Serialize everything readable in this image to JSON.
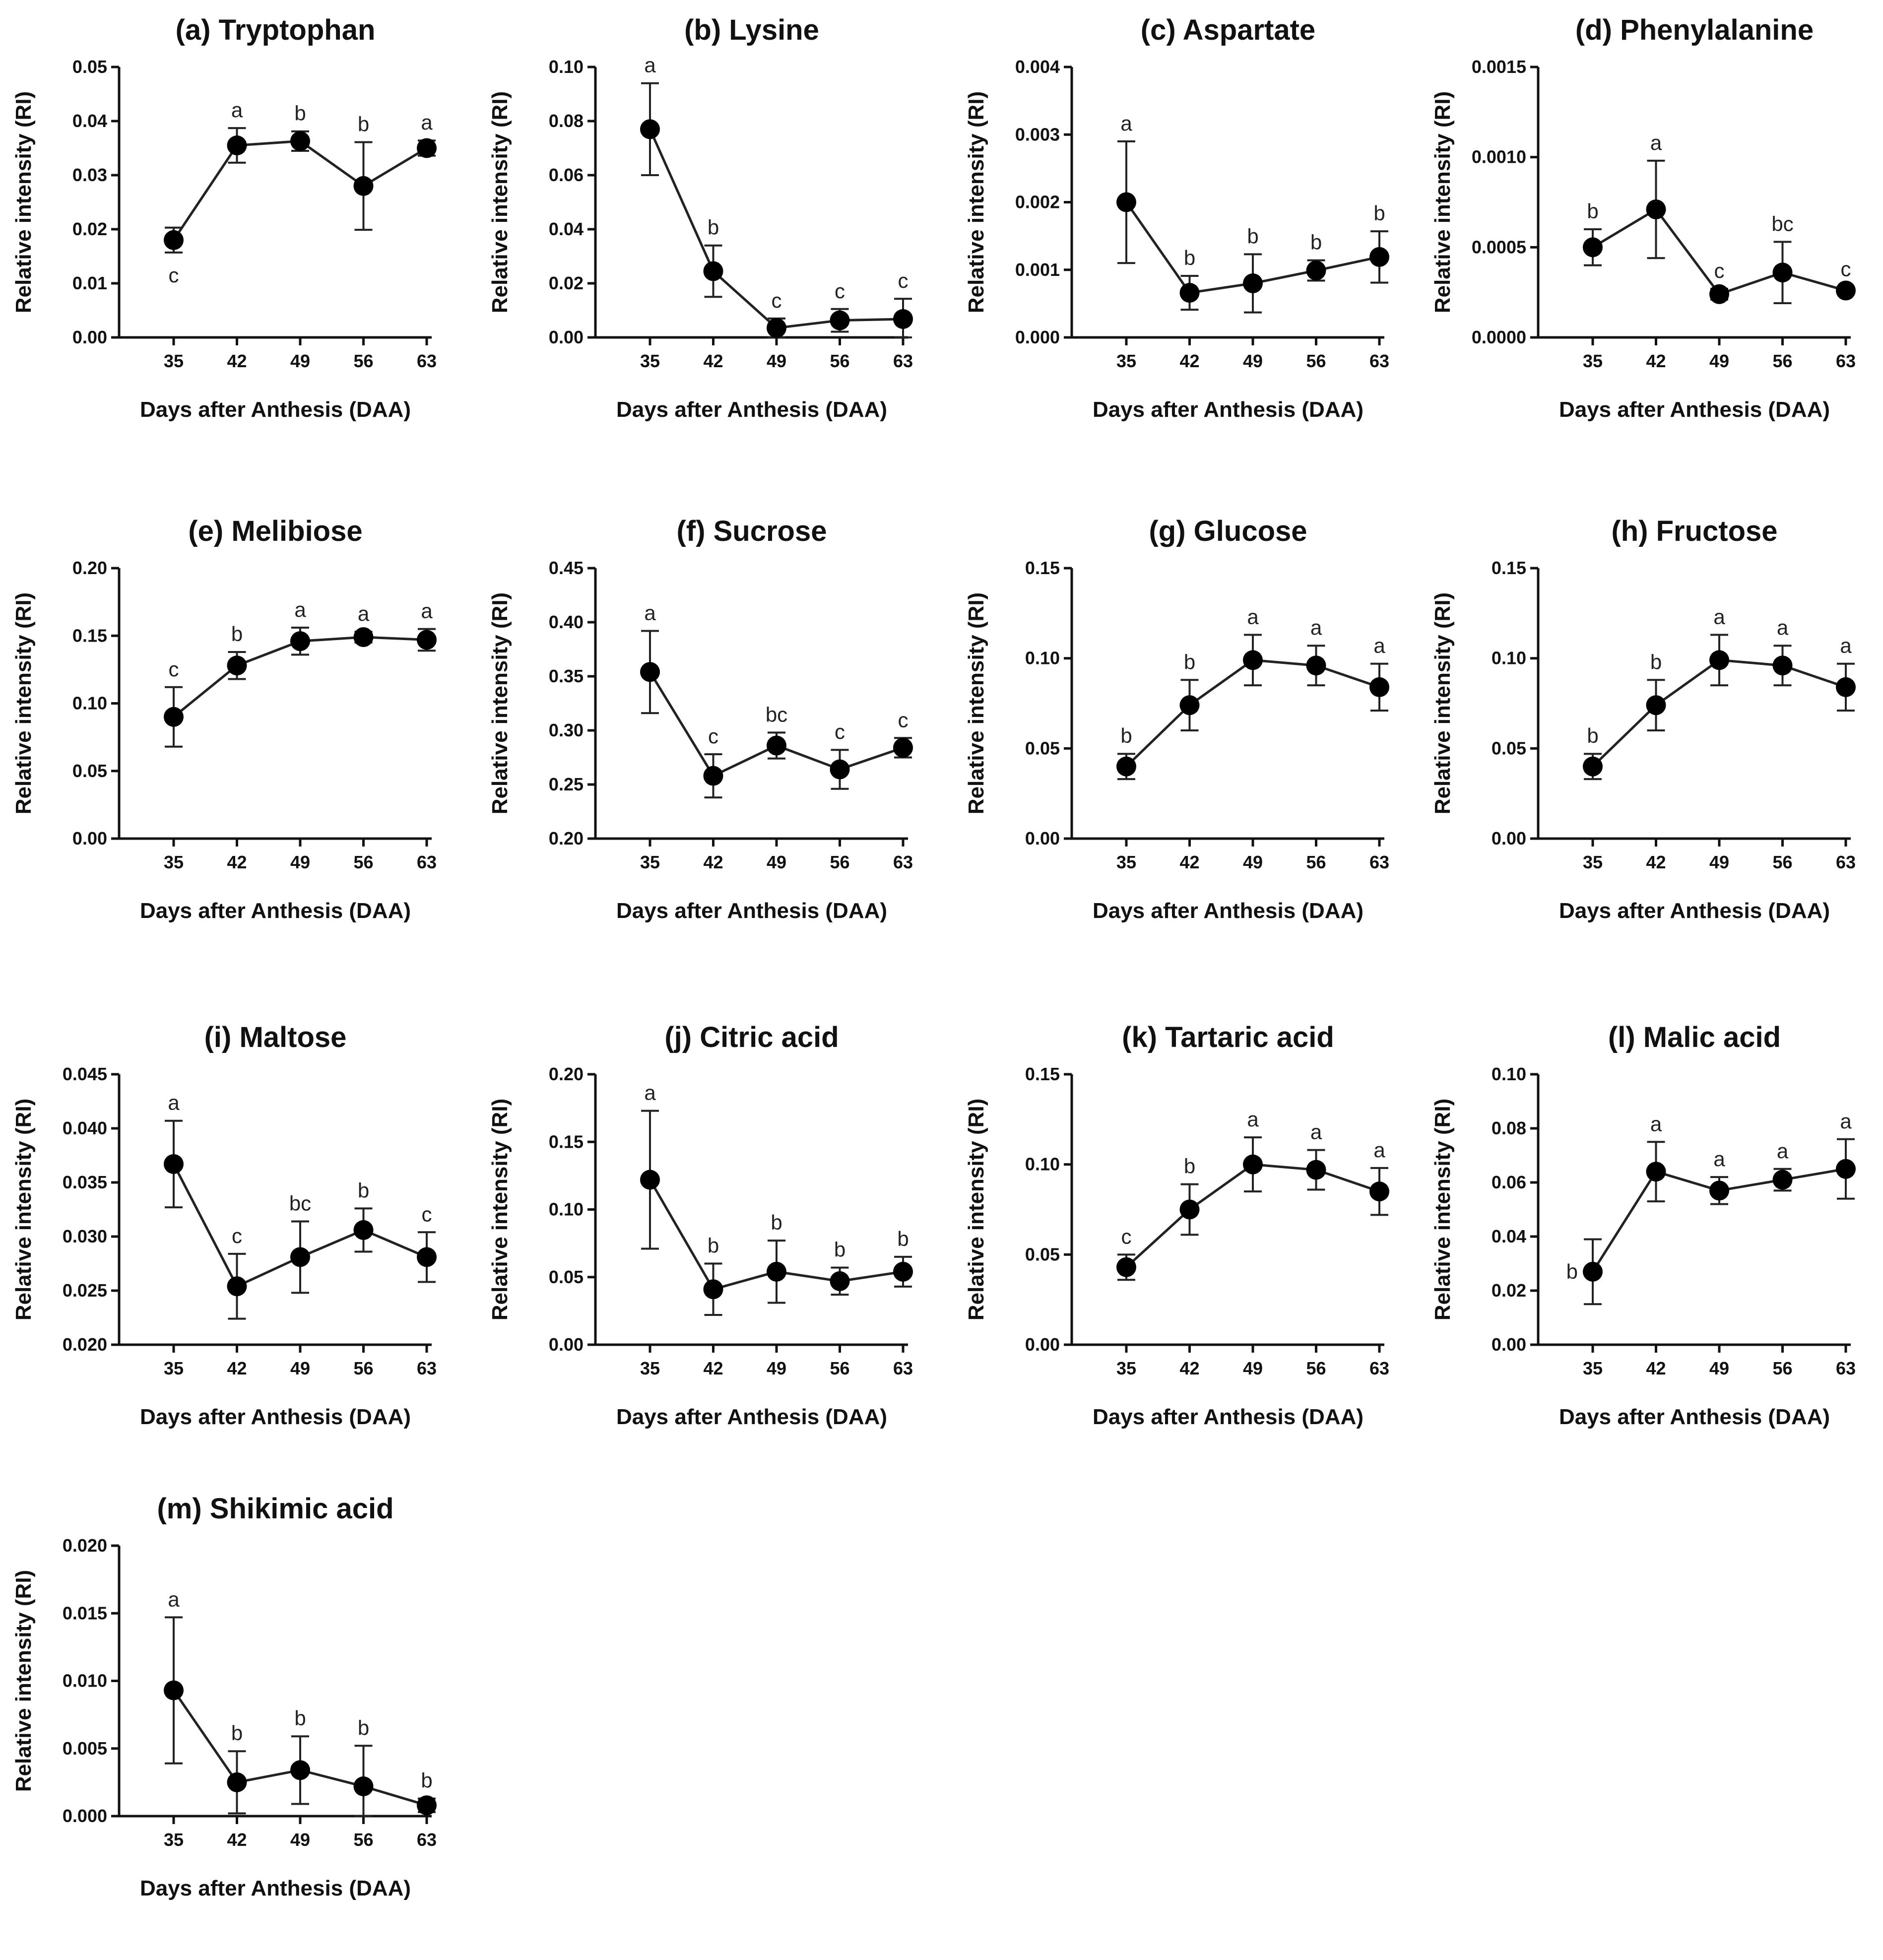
{
  "chart_data": [
    {
      "panel": "(a) Tryptophan",
      "type": "line",
      "title": "(a) Tryptophan",
      "xlabel": "Days after Anthesis (DAA)",
      "ylabel": "Relative intensity (RI)",
      "categories": [
        "35",
        "42",
        "49",
        "56",
        "63"
      ],
      "values": [
        0.018,
        0.0355,
        0.0363,
        0.028,
        0.035
      ],
      "errors": [
        0.0023,
        0.0032,
        0.0018,
        0.0081,
        0.0014
      ],
      "letters": [
        "c",
        "a",
        "b",
        "b",
        "a"
      ],
      "letter_pos": [
        "below",
        "above",
        "above",
        "above",
        "above"
      ],
      "ylim": [
        0,
        0.05
      ],
      "yticks": [
        "0.00",
        "0.01",
        "0.02",
        "0.03",
        "0.04",
        "0.05"
      ]
    },
    {
      "panel": "(b) Lysine",
      "type": "line",
      "title": "(b) Lysine",
      "xlabel": "Days after Anthesis (DAA)",
      "ylabel": "Relative intensity (RI)",
      "categories": [
        "35",
        "42",
        "49",
        "56",
        "63"
      ],
      "values": [
        0.077,
        0.0245,
        0.0035,
        0.0063,
        0.0068
      ],
      "errors": [
        0.017,
        0.0095,
        0.0035,
        0.0042,
        0.0075
      ],
      "letters": [
        "a",
        "b",
        "c",
        "c",
        "c"
      ],
      "letter_pos": [
        "above",
        "above",
        "above",
        "above",
        "above"
      ],
      "ylim": [
        0,
        0.1
      ],
      "yticks": [
        "0.00",
        "0.02",
        "0.04",
        "0.06",
        "0.08",
        "0.10"
      ]
    },
    {
      "panel": "(c) Aspartate",
      "type": "line",
      "title": "(c) Aspartate",
      "xlabel": "Days after Anthesis (DAA)",
      "ylabel": "Relative intensity (RI)",
      "categories": [
        "35",
        "42",
        "49",
        "56",
        "63"
      ],
      "values": [
        0.002,
        0.00066,
        0.0008,
        0.00099,
        0.00119
      ],
      "errors": [
        0.0009,
        0.00025,
        0.00043,
        0.00015,
        0.00038
      ],
      "letters": [
        "a",
        "b",
        "b",
        "b",
        "b"
      ],
      "letter_pos": [
        "above",
        "above",
        "above",
        "above",
        "above"
      ],
      "ylim": [
        0,
        0.004
      ],
      "yticks": [
        "0.000",
        "0.001",
        "0.002",
        "0.003",
        "0.004"
      ]
    },
    {
      "panel": "(d) Phenylalanine",
      "type": "line",
      "title": "(d) Phenylalanine",
      "xlabel": "Days after Anthesis (DAA)",
      "ylabel": "Relative intensity (RI)",
      "categories": [
        "35",
        "42",
        "49",
        "56",
        "63"
      ],
      "values": [
        0.0005,
        0.00071,
        0.00024,
        0.00036,
        0.00026
      ],
      "errors": [
        0.0001,
        0.00027,
        3e-05,
        0.00017,
        2e-05
      ],
      "letters": [
        "b",
        "a",
        "c",
        "bc",
        "c"
      ],
      "letter_pos": [
        "above",
        "above",
        "above",
        "above",
        "above"
      ],
      "ylim": [
        0,
        0.0015
      ],
      "yticks": [
        "0.0000",
        "0.0005",
        "0.0010",
        "0.0015"
      ]
    },
    {
      "panel": "(e) Melibiose",
      "type": "line",
      "title": "(e) Melibiose",
      "xlabel": "Days after Anthesis (DAA)",
      "ylabel": "Relative intensity (RI)",
      "categories": [
        "35",
        "42",
        "49",
        "56",
        "63"
      ],
      "values": [
        0.09,
        0.128,
        0.146,
        0.149,
        0.147
      ],
      "errors": [
        0.022,
        0.01,
        0.01,
        0.004,
        0.008
      ],
      "letters": [
        "c",
        "b",
        "a",
        "a",
        "a"
      ],
      "letter_pos": [
        "above",
        "above",
        "above",
        "above",
        "above"
      ],
      "ylim": [
        0,
        0.2
      ],
      "yticks": [
        "0.00",
        "0.05",
        "0.10",
        "0.15",
        "0.20"
      ]
    },
    {
      "panel": "(f) Sucrose",
      "type": "line",
      "title": "(f) Sucrose",
      "xlabel": "Days after Anthesis (DAA)",
      "ylabel": "Relative intensity (RI)",
      "categories": [
        "35",
        "42",
        "49",
        "56",
        "63"
      ],
      "values": [
        0.354,
        0.258,
        0.286,
        0.264,
        0.284
      ],
      "errors": [
        0.038,
        0.02,
        0.012,
        0.018,
        0.009
      ],
      "letters": [
        "a",
        "c",
        "bc",
        "c",
        "c"
      ],
      "letter_pos": [
        "above",
        "above",
        "above",
        "above",
        "above"
      ],
      "ylim": [
        0.2,
        0.45
      ],
      "yticks": [
        "0.20",
        "0.25",
        "0.30",
        "0.35",
        "0.40",
        "0.45"
      ]
    },
    {
      "panel": "(g) Glucose",
      "type": "line",
      "title": "(g) Glucose",
      "xlabel": "Days after Anthesis (DAA)",
      "ylabel": "Relative intensity (RI)",
      "categories": [
        "35",
        "42",
        "49",
        "56",
        "63"
      ],
      "values": [
        0.04,
        0.074,
        0.099,
        0.096,
        0.084
      ],
      "errors": [
        0.007,
        0.014,
        0.014,
        0.011,
        0.013
      ],
      "letters": [
        "b",
        "b",
        "a",
        "a",
        "a"
      ],
      "letter_pos": [
        "above",
        "above",
        "above",
        "above",
        "above"
      ],
      "ylim": [
        0,
        0.15
      ],
      "yticks": [
        "0.00",
        "0.05",
        "0.10",
        "0.15"
      ]
    },
    {
      "panel": "(h) Fructose",
      "type": "line",
      "title": "(h) Fructose",
      "xlabel": "Days after Anthesis (DAA)",
      "ylabel": "Relative intensity (RI)",
      "categories": [
        "35",
        "42",
        "49",
        "56",
        "63"
      ],
      "values": [
        0.04,
        0.074,
        0.099,
        0.096,
        0.084
      ],
      "errors": [
        0.007,
        0.014,
        0.014,
        0.011,
        0.013
      ],
      "letters": [
        "b",
        "b",
        "a",
        "a",
        "a"
      ],
      "letter_pos": [
        "above",
        "above",
        "above",
        "above",
        "above"
      ],
      "ylim": [
        0,
        0.15
      ],
      "yticks": [
        "0.00",
        "0.05",
        "0.10",
        "0.15"
      ]
    },
    {
      "panel": "(i) Maltose",
      "type": "line",
      "title": "(i) Maltose",
      "xlabel": "Days after Anthesis (DAA)",
      "ylabel": "Relative intensity (RI)",
      "categories": [
        "35",
        "42",
        "49",
        "56",
        "63"
      ],
      "values": [
        0.0367,
        0.0254,
        0.0281,
        0.0306,
        0.0281
      ],
      "errors": [
        0.004,
        0.003,
        0.0033,
        0.002,
        0.0023
      ],
      "letters": [
        "a",
        "c",
        "bc",
        "b",
        "c"
      ],
      "letter_pos": [
        "above",
        "above",
        "above",
        "above",
        "above"
      ],
      "ylim": [
        0.02,
        0.045
      ],
      "yticks": [
        "0.020",
        "0.025",
        "0.030",
        "0.035",
        "0.040",
        "0.045"
      ]
    },
    {
      "panel": "(j) Citric acid",
      "type": "line",
      "title": "(j) Citric acid",
      "xlabel": "Days after Anthesis (DAA)",
      "ylabel": "Relative intensity (RI)",
      "categories": [
        "35",
        "42",
        "49",
        "56",
        "63"
      ],
      "values": [
        0.122,
        0.041,
        0.054,
        0.047,
        0.054
      ],
      "errors": [
        0.051,
        0.019,
        0.023,
        0.01,
        0.011
      ],
      "letters": [
        "a",
        "b",
        "b",
        "b",
        "b"
      ],
      "letter_pos": [
        "above",
        "above",
        "above",
        "above",
        "above"
      ],
      "ylim": [
        0,
        0.2
      ],
      "yticks": [
        "0.00",
        "0.05",
        "0.10",
        "0.15",
        "0.20"
      ]
    },
    {
      "panel": "(k) Tartaric acid",
      "type": "line",
      "title": "(k) Tartaric acid",
      "xlabel": "Days after Anthesis (DAA)",
      "ylabel": "Relative intensity (RI)",
      "categories": [
        "35",
        "42",
        "49",
        "56",
        "63"
      ],
      "values": [
        0.043,
        0.075,
        0.1,
        0.097,
        0.085
      ],
      "errors": [
        0.007,
        0.014,
        0.015,
        0.011,
        0.013
      ],
      "letters": [
        "c",
        "b",
        "a",
        "a",
        "a"
      ],
      "letter_pos": [
        "above",
        "above",
        "above",
        "above",
        "above"
      ],
      "ylim": [
        0,
        0.15
      ],
      "yticks": [
        "0.00",
        "0.05",
        "0.10",
        "0.15"
      ]
    },
    {
      "panel": "(l) Malic acid",
      "type": "line",
      "title": "(l) Malic acid",
      "xlabel": "Days after Anthesis (DAA)",
      "ylabel": "Relative intensity (RI)",
      "categories": [
        "35",
        "42",
        "49",
        "56",
        "63"
      ],
      "values": [
        0.027,
        0.064,
        0.057,
        0.061,
        0.065
      ],
      "errors": [
        0.012,
        0.011,
        0.005,
        0.004,
        0.011
      ],
      "letters": [
        "b",
        "a",
        "a",
        "a",
        "a"
      ],
      "letter_pos": [
        "left",
        "above",
        "above",
        "above",
        "above"
      ],
      "ylim": [
        0,
        0.1
      ],
      "yticks": [
        "0.00",
        "0.02",
        "0.04",
        "0.06",
        "0.08",
        "0.10"
      ]
    },
    {
      "panel": "(m) Shikimic acid",
      "type": "line",
      "title": "(m) Shikimic acid",
      "xlabel": "Days after Anthesis (DAA)",
      "ylabel": "Relative intensity (RI)",
      "categories": [
        "35",
        "42",
        "49",
        "56",
        "63"
      ],
      "values": [
        0.0093,
        0.0025,
        0.0034,
        0.0022,
        0.0008
      ],
      "errors": [
        0.0054,
        0.0023,
        0.0025,
        0.003,
        0.0005
      ],
      "letters": [
        "a",
        "b",
        "b",
        "b",
        "b"
      ],
      "letter_pos": [
        "above",
        "above",
        "above",
        "above",
        "above"
      ],
      "ylim": [
        0,
        0.02
      ],
      "yticks": [
        "0.000",
        "0.005",
        "0.010",
        "0.015",
        "0.020"
      ]
    }
  ]
}
